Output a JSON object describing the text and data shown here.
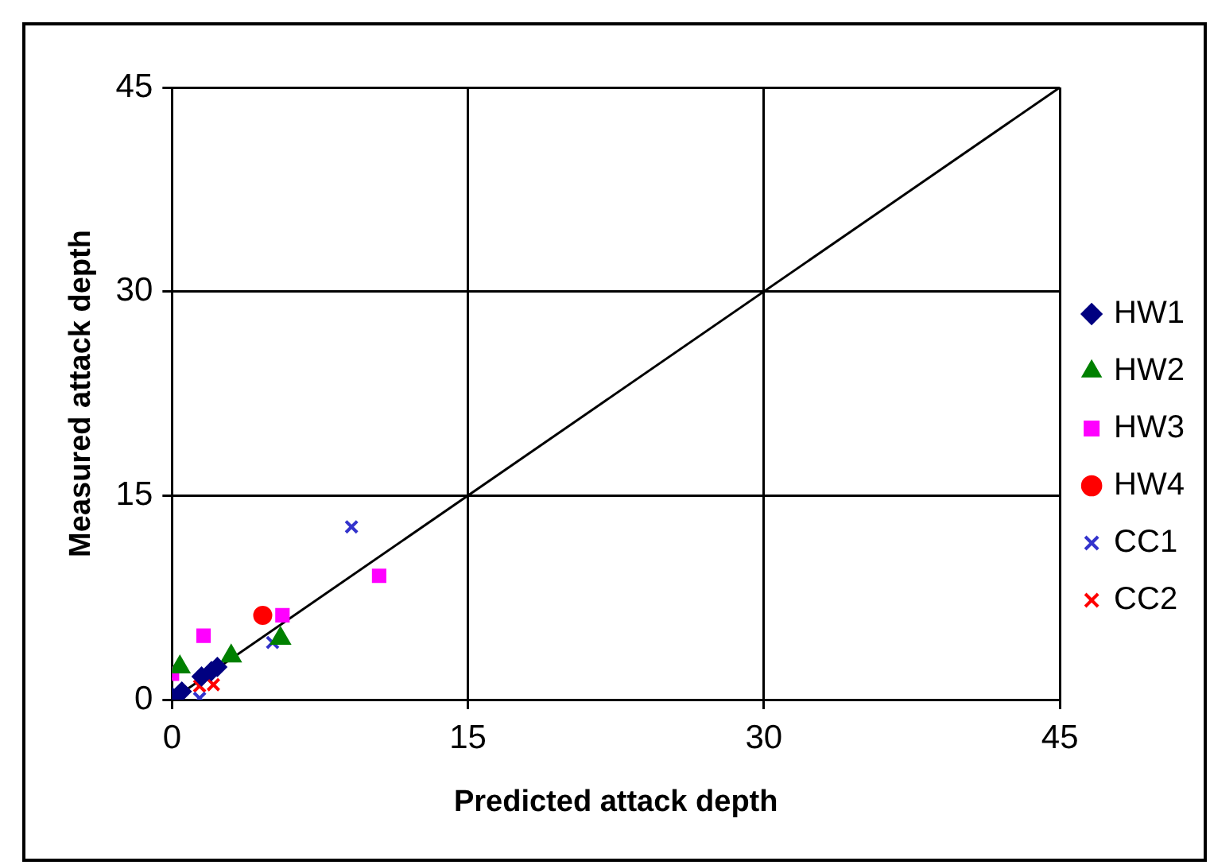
{
  "chart_data": {
    "type": "scatter",
    "xlabel": "Predicted attack depth",
    "ylabel": "Measured attack depth",
    "xlim": [
      0,
      45
    ],
    "ylim": [
      0,
      45
    ],
    "xticks": [
      0,
      15,
      30,
      45
    ],
    "yticks": [
      0,
      15,
      30,
      45
    ],
    "grid": true,
    "legend": "right",
    "series": [
      {
        "name": "HW1",
        "color": "#000080",
        "marker": "diamond",
        "x": [
          0,
          0.5,
          1.5,
          2.0,
          2.3
        ],
        "values": [
          0.2,
          0.6,
          1.7,
          2.1,
          2.4
        ]
      },
      {
        "name": "HW2",
        "color": "#008000",
        "marker": "triangle",
        "x": [
          0.4,
          3.0,
          5.5
        ],
        "values": [
          2.4,
          3.2,
          4.5
        ]
      },
      {
        "name": "HW3",
        "color": "#ff00ff",
        "marker": "square",
        "x": [
          0,
          1.6,
          5.6,
          10.5
        ],
        "values": [
          1.9,
          4.7,
          6.2,
          9.1
        ]
      },
      {
        "name": "HW4",
        "color": "#ff0000",
        "marker": "circle",
        "x": [
          4.6
        ],
        "values": [
          6.2
        ]
      },
      {
        "name": "CC1",
        "color": "#3333cc",
        "marker": "cross",
        "x": [
          1.4,
          5.1,
          9.1
        ],
        "values": [
          0.1,
          4.2,
          12.7
        ]
      },
      {
        "name": "CC2",
        "color": "#ff0000",
        "marker": "cross",
        "x": [
          1.4,
          2.1
        ],
        "values": [
          1.0,
          1.1
        ]
      },
      {
        "type": "line",
        "color": "#000000",
        "marker": "none",
        "x": [
          0,
          45
        ],
        "values": [
          0,
          45
        ]
      }
    ]
  }
}
